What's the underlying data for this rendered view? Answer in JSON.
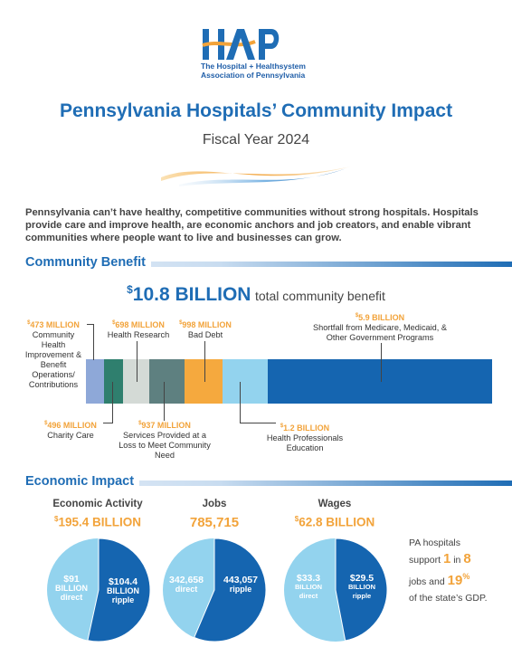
{
  "logo": {
    "mark": "HAP",
    "line1": "The Hospital + Healthsystem",
    "line2": "Association of Pennsylvania"
  },
  "title": "Pennsylvania Hospitals’ Community Impact",
  "subtitle": "Fiscal Year 2024",
  "intro": "Pennsylvania can’t have healthy, competitive communities without strong hospitals. Hospitals provide care and improve health, are economic anchors and job creators, and enable vibrant communities where people want to live and businesses can grow.",
  "community_benefit": {
    "heading": "Community Benefit",
    "total_currency": "$",
    "total_amount": "10.8 BILLION",
    "total_text": "total community benefit",
    "segments": [
      {
        "key": "cb",
        "currency": "$",
        "amount": "473 MILLION",
        "label": "Community Health Improvement & Benefit Operations/ Contributions",
        "value_millions": 473,
        "color": "#8ea8d8"
      },
      {
        "key": "charity",
        "currency": "$",
        "amount": "496 MILLION",
        "label": "Charity Care",
        "value_millions": 496,
        "color": "#2f7f6e"
      },
      {
        "key": "research",
        "currency": "$",
        "amount": "698 MILLION",
        "label": "Health Research",
        "value_millions": 698,
        "color": "#d4dad6"
      },
      {
        "key": "loss",
        "currency": "$",
        "amount": "937 MILLION",
        "label": "Services Provided at a Loss to Meet Community Need",
        "value_millions": 937,
        "color": "#5e8080"
      },
      {
        "key": "debt",
        "currency": "$",
        "amount": "998 MILLION",
        "label": "Bad Debt",
        "value_millions": 998,
        "color": "#f5a93e"
      },
      {
        "key": "education",
        "currency": "$",
        "amount": "1.2 BILLION",
        "label": "Health Professionals Education",
        "value_millions": 1200,
        "color": "#93d3ee"
      },
      {
        "key": "shortfall",
        "currency": "$",
        "amount": "5.9 BILLION",
        "label": "Shortfall from Medicare, Medicaid, & Other Government Programs",
        "value_millions": 5900,
        "color": "#1565b0"
      }
    ]
  },
  "economic_impact": {
    "heading": "Economic Impact",
    "columns": [
      {
        "head": "Economic Activity",
        "currency": "$",
        "total": "195.4 BILLION",
        "direct_value": "$91",
        "direct_unit": "BILLION",
        "direct_label": "direct",
        "ripple_value": "$104.4",
        "ripple_unit": "BILLION",
        "ripple_label": "ripple",
        "direct_fraction": 0.466
      },
      {
        "head": "Jobs",
        "currency": "",
        "total": "785,715",
        "direct_value": "342,658",
        "direct_unit": "",
        "direct_label": "direct",
        "ripple_value": "443,057",
        "ripple_unit": "",
        "ripple_label": "ripple",
        "direct_fraction": 0.436
      },
      {
        "head": "Wages",
        "currency": "$",
        "total": "62.8 BILLION",
        "direct_value": "$33.3",
        "direct_unit": "BILLION",
        "direct_label": "direct",
        "ripple_value": "$29.5",
        "ripple_unit": "BILLION",
        "ripple_label": "ripple",
        "direct_fraction": 0.53
      }
    ],
    "colors": {
      "direct": "#93d3ee",
      "ripple": "#1565b0"
    },
    "summary": {
      "t1": "PA hospitals",
      "t2": "support",
      "n1": "1",
      "t3": "in",
      "n2": "8",
      "t4": "jobs and",
      "n3": "19",
      "pct": "%",
      "t5": "of the state’s GDP."
    }
  }
}
